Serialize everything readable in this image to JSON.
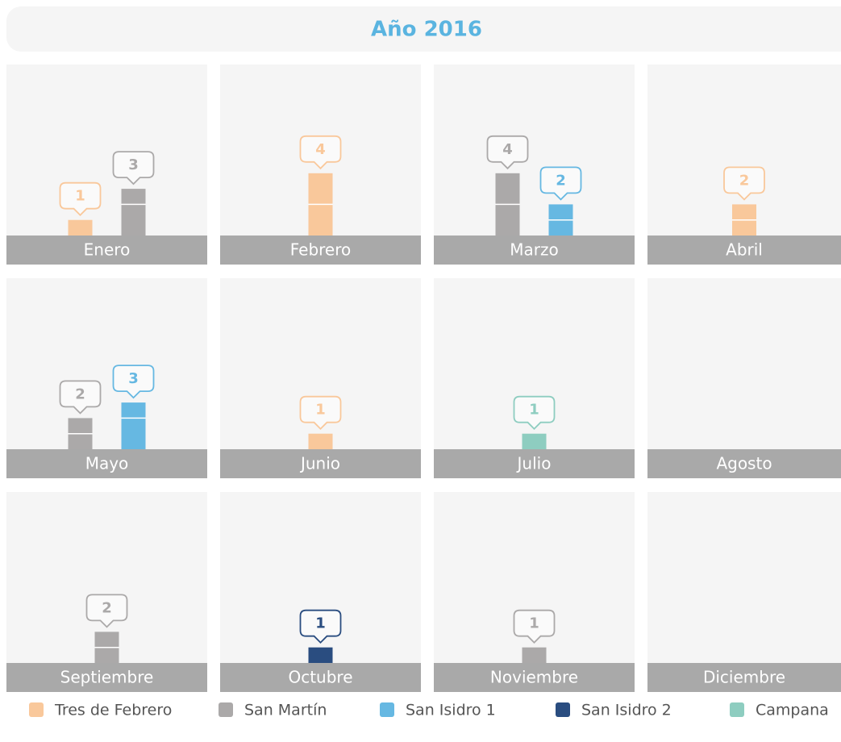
{
  "chart_data": {
    "type": "bar",
    "title": "Año 2016",
    "categories": [
      "Enero",
      "Febrero",
      "Marzo",
      "Abril",
      "Mayo",
      "Junio",
      "Julio",
      "Agosto",
      "Septiembre",
      "Octubre",
      "Noviembre",
      "Diciembre"
    ],
    "series": [
      {
        "name": "Tres de Febrero",
        "color": "#f9c89b",
        "values": [
          1,
          4,
          null,
          2,
          null,
          1,
          null,
          null,
          null,
          null,
          null,
          null
        ]
      },
      {
        "name": "San Martín",
        "color": "#aba9a9",
        "values": [
          3,
          null,
          4,
          null,
          2,
          null,
          null,
          null,
          2,
          null,
          1,
          null
        ]
      },
      {
        "name": "San Isidro 1",
        "color": "#66b8e2",
        "values": [
          null,
          null,
          2,
          null,
          3,
          null,
          null,
          null,
          null,
          null,
          null,
          null
        ]
      },
      {
        "name": "San Isidro 2",
        "color": "#2a4d80",
        "values": [
          null,
          null,
          null,
          null,
          null,
          null,
          null,
          null,
          null,
          1,
          null,
          null
        ]
      },
      {
        "name": "Campana",
        "color": "#8ecdc0",
        "values": [
          null,
          null,
          null,
          null,
          null,
          null,
          1,
          null,
          null,
          null,
          null,
          null
        ]
      }
    ]
  }
}
